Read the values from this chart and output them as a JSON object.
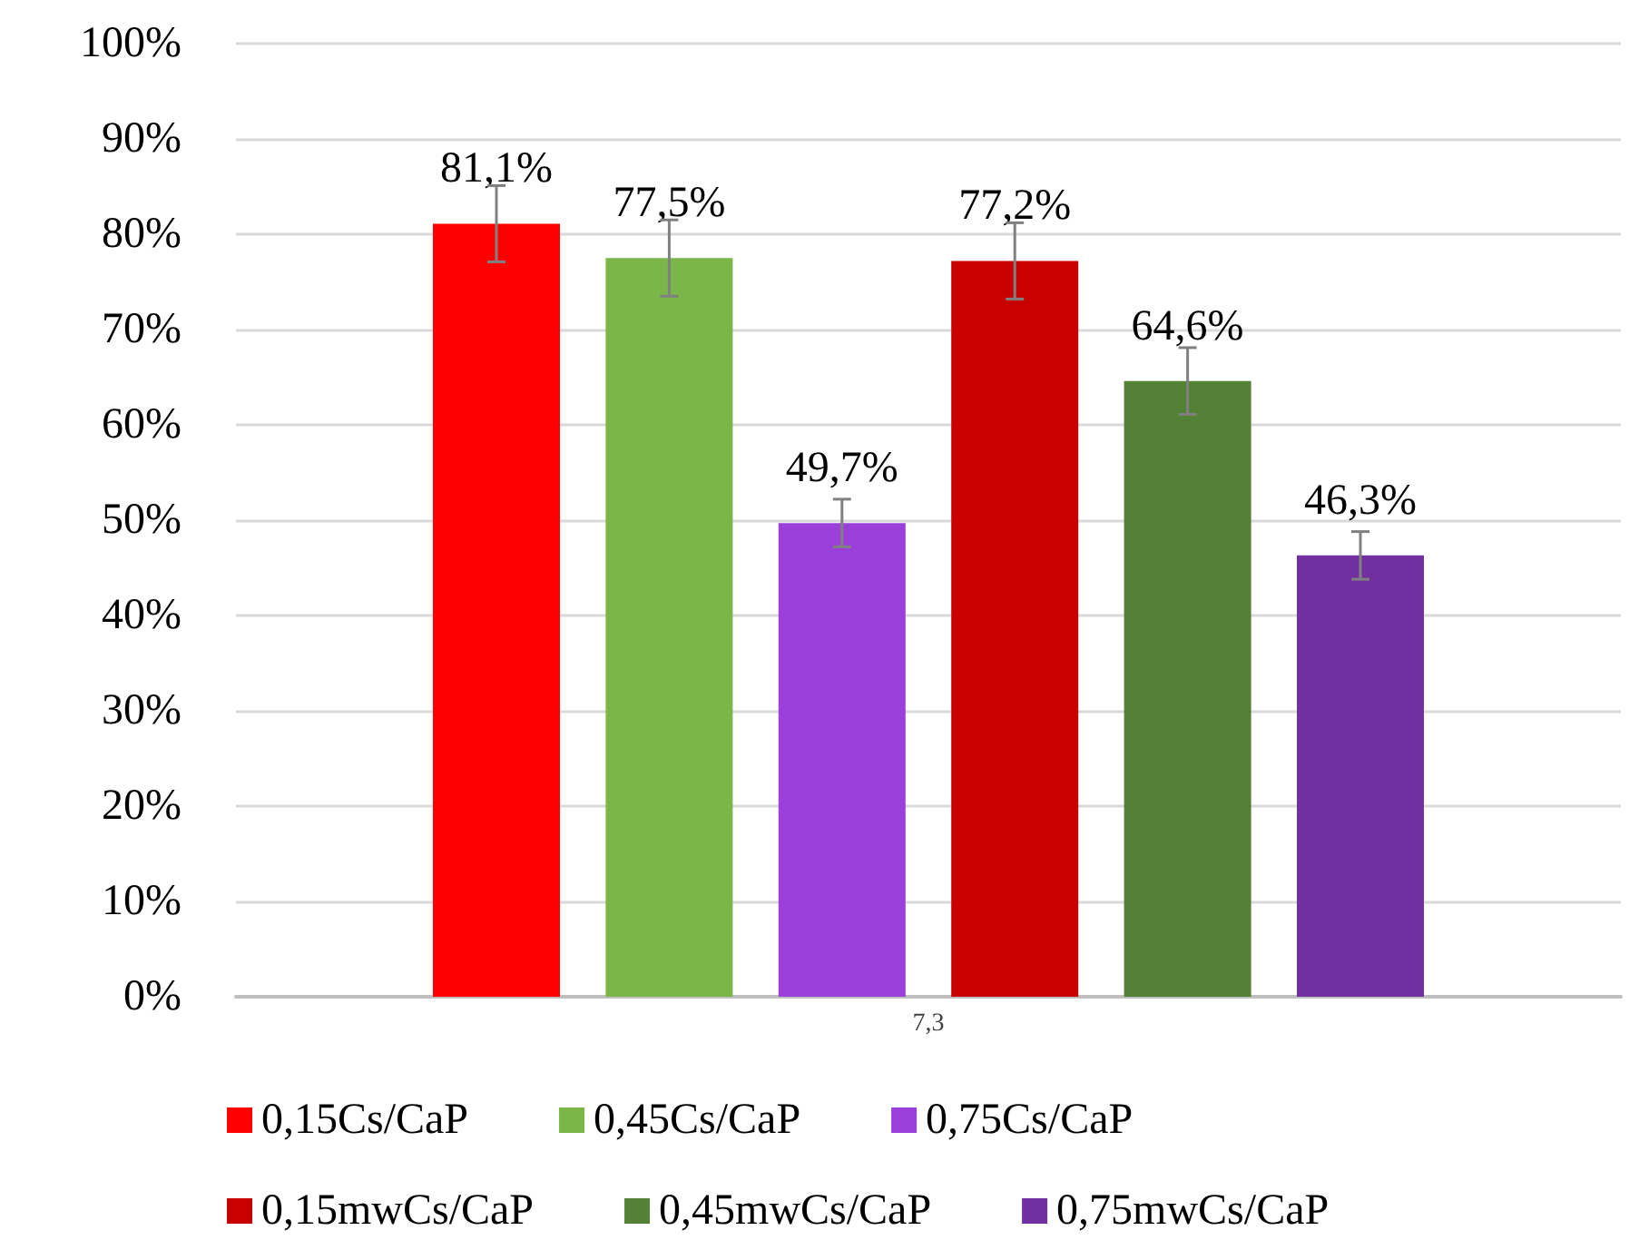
{
  "chart_data": {
    "type": "bar",
    "categories": [
      "7,3"
    ],
    "series": [
      {
        "name": "0,15Cs/CaP",
        "color": "#ff0000",
        "values": [
          81.1
        ],
        "errors": [
          4
        ],
        "value_labels": [
          "81,1%"
        ]
      },
      {
        "name": "0,45Cs/CaP",
        "color": "#7ab648",
        "values": [
          77.5
        ],
        "errors": [
          4
        ],
        "value_labels": [
          "77,5%"
        ]
      },
      {
        "name": "0,75Cs/CaP",
        "color": "#9b3fdb",
        "values": [
          49.7
        ],
        "errors": [
          2.5
        ],
        "value_labels": [
          "49,7%"
        ]
      },
      {
        "name": "0,15mwCs/CaP",
        "color": "#c80000",
        "values": [
          77.2
        ],
        "errors": [
          4
        ],
        "value_labels": [
          "77,2%"
        ]
      },
      {
        "name": "0,45mwCs/CaP",
        "color": "#538135",
        "values": [
          64.6
        ],
        "errors": [
          3.5
        ],
        "value_labels": [
          "64,6%"
        ]
      },
      {
        "name": "0,75mwCs/CaP",
        "color": "#7030a0",
        "values": [
          46.3
        ],
        "errors": [
          2.5
        ],
        "value_labels": [
          "46,3%"
        ]
      }
    ],
    "ylim": [
      0,
      100
    ],
    "yticks": [
      {
        "value": 0,
        "label": "0%"
      },
      {
        "value": 10,
        "label": "10%"
      },
      {
        "value": 20,
        "label": "20%"
      },
      {
        "value": 30,
        "label": "30%"
      },
      {
        "value": 40,
        "label": "40%"
      },
      {
        "value": 50,
        "label": "50%"
      },
      {
        "value": 60,
        "label": "60%"
      },
      {
        "value": 70,
        "label": "70%"
      },
      {
        "value": 80,
        "label": "80%"
      },
      {
        "value": 90,
        "label": "90%"
      },
      {
        "value": 100,
        "label": "100%"
      }
    ],
    "grid": "y",
    "legend": "bottom"
  }
}
